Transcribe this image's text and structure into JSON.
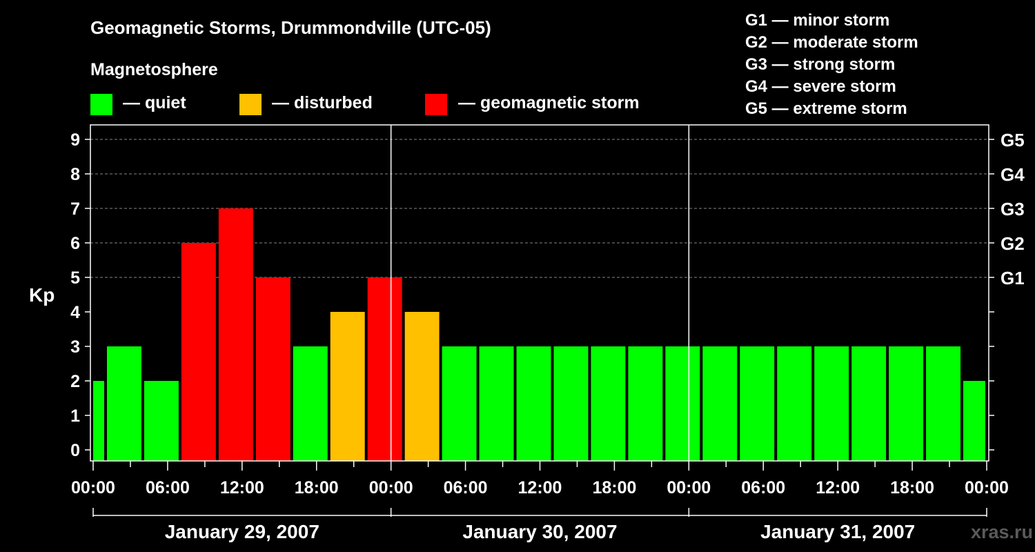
{
  "header": {
    "title": "Geomagnetic Storms, Drummondville (UTC-05)",
    "legend_heading": "Magnetosphere"
  },
  "legend": [
    {
      "label": "— quiet",
      "color": "#00ff00"
    },
    {
      "label": "— disturbed",
      "color": "#ffc000"
    },
    {
      "label": "— geomagnetic storm",
      "color": "#ff0000"
    }
  ],
  "storm_scale": [
    "G1 — minor storm",
    "G2 — moderate storm",
    "G3 — strong storm",
    "G4 — severe storm",
    "G5 — extreme storm"
  ],
  "watermark": "xras.ru",
  "chart_data": {
    "type": "bar",
    "ylabel": "Kp",
    "ylim": [
      0,
      9
    ],
    "yticks": [
      "0",
      "1",
      "2",
      "3",
      "4",
      "5",
      "6",
      "7",
      "8",
      "9"
    ],
    "right_ticks": [
      {
        "kp": 5,
        "label": "G1"
      },
      {
        "kp": 6,
        "label": "G2"
      },
      {
        "kp": 7,
        "label": "G3"
      },
      {
        "kp": 8,
        "label": "G4"
      },
      {
        "kp": 9,
        "label": "G5"
      }
    ],
    "grid": "horizontal dashed",
    "x_start": "2007-01-29 00:00",
    "x_end": "2007-02-01 00:00",
    "xticks": [
      "00:00",
      "06:00",
      "12:00",
      "18:00",
      "00:00",
      "06:00",
      "12:00",
      "18:00",
      "00:00",
      "06:00",
      "12:00",
      "18:00",
      "00:00"
    ],
    "days": [
      "January 29, 2007",
      "January 30, 2007",
      "January 31, 2007"
    ],
    "bars": [
      {
        "start": "2007-01-29 00:00",
        "end": "2007-01-29 01:00",
        "kp": 2,
        "level": "quiet"
      },
      {
        "start": "2007-01-29 01:00",
        "end": "2007-01-29 04:00",
        "kp": 3,
        "level": "quiet"
      },
      {
        "start": "2007-01-29 04:00",
        "end": "2007-01-29 07:00",
        "kp": 2,
        "level": "quiet"
      },
      {
        "start": "2007-01-29 07:00",
        "end": "2007-01-29 10:00",
        "kp": 6,
        "level": "storm"
      },
      {
        "start": "2007-01-29 10:00",
        "end": "2007-01-29 13:00",
        "kp": 7,
        "level": "storm"
      },
      {
        "start": "2007-01-29 13:00",
        "end": "2007-01-29 16:00",
        "kp": 5,
        "level": "storm"
      },
      {
        "start": "2007-01-29 16:00",
        "end": "2007-01-29 19:00",
        "kp": 3,
        "level": "quiet"
      },
      {
        "start": "2007-01-29 19:00",
        "end": "2007-01-29 22:00",
        "kp": 4,
        "level": "disturbed"
      },
      {
        "start": "2007-01-29 22:00",
        "end": "2007-01-30 01:00",
        "kp": 5,
        "level": "storm"
      },
      {
        "start": "2007-01-30 01:00",
        "end": "2007-01-30 04:00",
        "kp": 4,
        "level": "disturbed"
      },
      {
        "start": "2007-01-30 04:00",
        "end": "2007-01-30 07:00",
        "kp": 3,
        "level": "quiet"
      },
      {
        "start": "2007-01-30 07:00",
        "end": "2007-01-30 10:00",
        "kp": 3,
        "level": "quiet"
      },
      {
        "start": "2007-01-30 10:00",
        "end": "2007-01-30 13:00",
        "kp": 3,
        "level": "quiet"
      },
      {
        "start": "2007-01-30 13:00",
        "end": "2007-01-30 16:00",
        "kp": 3,
        "level": "quiet"
      },
      {
        "start": "2007-01-30 16:00",
        "end": "2007-01-30 19:00",
        "kp": 3,
        "level": "quiet"
      },
      {
        "start": "2007-01-30 19:00",
        "end": "2007-01-30 22:00",
        "kp": 3,
        "level": "quiet"
      },
      {
        "start": "2007-01-30 22:00",
        "end": "2007-01-31 01:00",
        "kp": 3,
        "level": "quiet"
      },
      {
        "start": "2007-01-31 01:00",
        "end": "2007-01-31 04:00",
        "kp": 3,
        "level": "quiet"
      },
      {
        "start": "2007-01-31 04:00",
        "end": "2007-01-31 07:00",
        "kp": 3,
        "level": "quiet"
      },
      {
        "start": "2007-01-31 07:00",
        "end": "2007-01-31 10:00",
        "kp": 3,
        "level": "quiet"
      },
      {
        "start": "2007-01-31 10:00",
        "end": "2007-01-31 13:00",
        "kp": 3,
        "level": "quiet"
      },
      {
        "start": "2007-01-31 13:00",
        "end": "2007-01-31 16:00",
        "kp": 3,
        "level": "quiet"
      },
      {
        "start": "2007-01-31 16:00",
        "end": "2007-01-31 19:00",
        "kp": 3,
        "level": "quiet"
      },
      {
        "start": "2007-01-31 19:00",
        "end": "2007-01-31 22:00",
        "kp": 3,
        "level": "quiet"
      },
      {
        "start": "2007-01-31 22:00",
        "end": "2007-02-01 00:00",
        "kp": 2,
        "level": "quiet"
      }
    ],
    "colors": {
      "quiet": "#00ff00",
      "disturbed": "#ffc000",
      "storm": "#ff0000"
    }
  }
}
